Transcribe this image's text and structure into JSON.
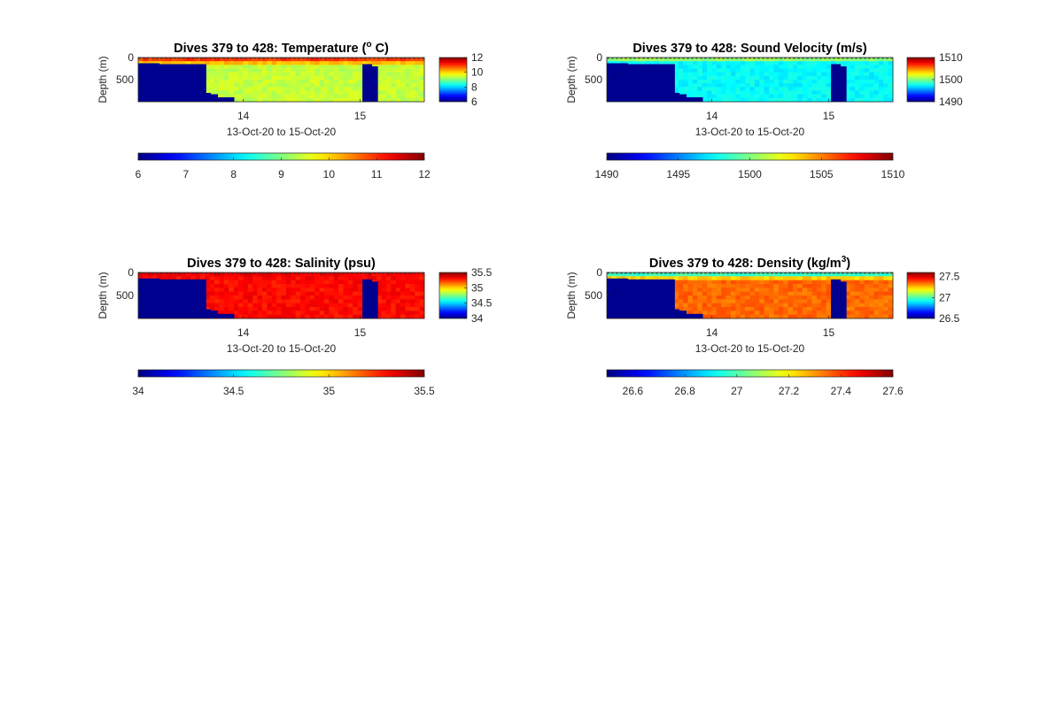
{
  "figure": {
    "background": "#ffffff",
    "colormap": "jet",
    "mask_color": "#00008f"
  },
  "chart_data": [
    {
      "type": "heatmap",
      "title": "Dives 379 to 428: Temperature (",
      "title_super": "o",
      "title_suffix": " C)",
      "ylabel": "Depth (m)",
      "xlabel": "13-Oct-20 to 15-Oct-20",
      "y_reversed": true,
      "y_ticks": [
        "0",
        "500"
      ],
      "x_ticks": [
        "14",
        "15"
      ],
      "xlim": [
        13.1,
        15.55
      ],
      "ylim": [
        0,
        1000
      ],
      "clim": [
        6,
        12
      ],
      "colorbar_ticks": [
        "6",
        "8",
        "10",
        "12"
      ],
      "horizontal_colorbar_ticks": [
        "6",
        "7",
        "8",
        "9",
        "10",
        "11",
        "12"
      ],
      "surface_value": 11.3,
      "deep_value": 9.4,
      "gradient_depth": 200,
      "mask_columns": [
        [
          13.1,
          13.28,
          130
        ],
        [
          13.28,
          13.68,
          150
        ],
        [
          13.68,
          13.72,
          800
        ],
        [
          13.72,
          13.78,
          830
        ],
        [
          13.78,
          13.92,
          900
        ],
        [
          15.02,
          15.1,
          150
        ],
        [
          15.1,
          15.15,
          200
        ]
      ],
      "dark_column": [
        15.02,
        15.1
      ]
    },
    {
      "type": "heatmap",
      "title": "Dives 379 to 428: Sound Velocity (m/s)",
      "title_super": "",
      "title_suffix": "",
      "ylabel": "Depth (m)",
      "xlabel": "13-Oct-20 to 15-Oct-20",
      "y_reversed": true,
      "y_ticks": [
        "0",
        "500"
      ],
      "x_ticks": [
        "14",
        "15"
      ],
      "xlim": [
        13.1,
        15.55
      ],
      "ylim": [
        0,
        1000
      ],
      "clim": [
        1490,
        1510
      ],
      "colorbar_ticks": [
        "1490",
        "1500",
        "1510"
      ],
      "horizontal_colorbar_ticks": [
        "1490",
        "1495",
        "1500",
        "1505",
        "1510"
      ],
      "surface_value": 1502,
      "deep_value": 1497.5,
      "gradient_depth": 120,
      "mask_columns": [
        [
          13.1,
          13.28,
          130
        ],
        [
          13.28,
          13.68,
          150
        ],
        [
          13.68,
          13.72,
          800
        ],
        [
          13.72,
          13.78,
          830
        ],
        [
          13.78,
          13.92,
          900
        ],
        [
          15.02,
          15.1,
          150
        ],
        [
          15.1,
          15.15,
          200
        ]
      ],
      "dark_column": [
        15.02,
        15.1
      ]
    },
    {
      "type": "heatmap",
      "title": "Dives 379 to 428: Salinity (psu)",
      "title_super": "",
      "title_suffix": "",
      "ylabel": "Depth (m)",
      "xlabel": "13-Oct-20 to 15-Oct-20",
      "y_reversed": true,
      "y_ticks": [
        "0",
        "500"
      ],
      "x_ticks": [
        "14",
        "15"
      ],
      "xlim": [
        13.1,
        15.55
      ],
      "ylim": [
        0,
        1000
      ],
      "clim": [
        34,
        35.5
      ],
      "colorbar_ticks": [
        "34",
        "34.5",
        "35",
        "35.5"
      ],
      "horizontal_colorbar_ticks": [
        "34",
        "34.5",
        "35",
        "35.5"
      ],
      "surface_value": 35.35,
      "deep_value": 35.3,
      "gradient_depth": 150,
      "mask_columns": [
        [
          13.1,
          13.28,
          130
        ],
        [
          13.28,
          13.68,
          150
        ],
        [
          13.68,
          13.72,
          800
        ],
        [
          13.72,
          13.78,
          830
        ],
        [
          13.78,
          13.92,
          900
        ],
        [
          15.02,
          15.1,
          150
        ],
        [
          15.1,
          15.15,
          200
        ]
      ],
      "dark_column": [
        15.02,
        15.1
      ]
    },
    {
      "type": "heatmap",
      "title": "Dives 379 to 428: Density (kg/m",
      "title_super": "3",
      "title_suffix": ")",
      "ylabel": "Depth (m)",
      "xlabel": "13-Oct-20 to 15-Oct-20",
      "y_reversed": true,
      "y_ticks": [
        "0",
        "500"
      ],
      "x_ticks": [
        "14",
        "15"
      ],
      "xlim": [
        13.1,
        15.55
      ],
      "ylim": [
        0,
        1000
      ],
      "clim": [
        26.5,
        27.6
      ],
      "colorbar_ticks": [
        "26.5",
        "27",
        "27.5"
      ],
      "horizontal_colorbar_ticks": [
        "26.6",
        "26.8",
        "27",
        "27.2",
        "27.4",
        "27.6"
      ],
      "surface_value": 26.85,
      "deep_value": 27.35,
      "gradient_depth": 160,
      "mask_columns": [
        [
          13.1,
          13.28,
          130
        ],
        [
          13.28,
          13.68,
          150
        ],
        [
          13.68,
          13.72,
          800
        ],
        [
          13.72,
          13.78,
          830
        ],
        [
          13.78,
          13.92,
          900
        ],
        [
          15.02,
          15.1,
          150
        ],
        [
          15.1,
          15.15,
          200
        ]
      ],
      "dark_column": [
        15.02,
        15.1
      ]
    }
  ]
}
